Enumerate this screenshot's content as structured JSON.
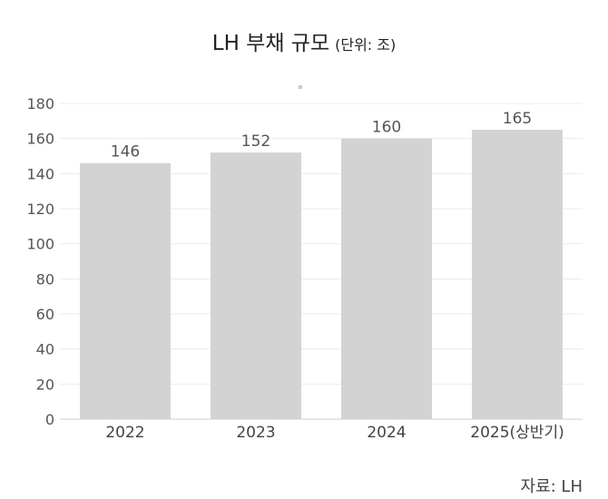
{
  "chart_data": {
    "type": "bar",
    "title": "LH 부채 규모",
    "unit_label": "(단위: 조)",
    "categories": [
      "2022",
      "2023",
      "2024",
      "2025(상반기)"
    ],
    "values": [
      146,
      152,
      160,
      165
    ],
    "xlabel": "",
    "ylabel": "",
    "ylim": [
      0,
      180
    ],
    "yticks": [
      0,
      20,
      40,
      60,
      80,
      100,
      120,
      140,
      160,
      180
    ],
    "grid": true,
    "bar_color": "#d3d3d3",
    "data_labels": [
      "146",
      "152",
      "160",
      "165"
    ]
  },
  "source": "자료: LH"
}
